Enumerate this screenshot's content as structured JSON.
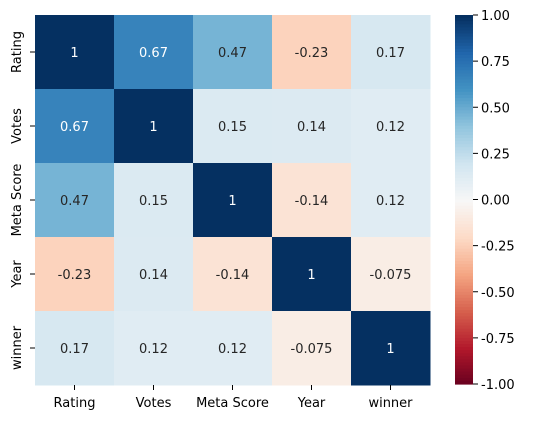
{
  "chart_data": {
    "type": "heatmap",
    "title": "",
    "xlabel": "",
    "ylabel": "",
    "x_categories": [
      "Rating",
      "Votes",
      "Meta Score",
      "Year",
      "winner"
    ],
    "y_categories": [
      "Rating",
      "Votes",
      "Meta Score",
      "Year",
      "winner"
    ],
    "values": [
      [
        1,
        0.67,
        0.47,
        -0.23,
        0.17
      ],
      [
        0.67,
        1,
        0.15,
        0.14,
        0.12
      ],
      [
        0.47,
        0.15,
        1,
        -0.14,
        0.12
      ],
      [
        -0.23,
        0.14,
        -0.14,
        1,
        -0.075
      ],
      [
        0.17,
        0.12,
        0.12,
        -0.075,
        1
      ]
    ],
    "cell_labels": [
      [
        "1",
        "0.67",
        "0.47",
        "-0.23",
        "0.17"
      ],
      [
        "0.67",
        "1",
        "0.15",
        "0.14",
        "0.12"
      ],
      [
        "0.47",
        "0.15",
        "1",
        "-0.14",
        "0.12"
      ],
      [
        "-0.23",
        "0.14",
        "-0.14",
        "1",
        "-0.075"
      ],
      [
        "0.17",
        "0.12",
        "0.12",
        "-0.075",
        "1"
      ]
    ],
    "colormap": "RdBu",
    "vmin": -1,
    "vmax": 1,
    "colorbar_ticks": [
      "1.00",
      "0.75",
      "0.50",
      "0.25",
      "0.00",
      "-0.25",
      "-0.50",
      "-0.75",
      "-1.00"
    ],
    "colorbar_tick_values": [
      1,
      0.75,
      0.5,
      0.25,
      0,
      -0.25,
      -0.5,
      -0.75,
      -1
    ],
    "colorbar_placement": "right",
    "grid": false
  }
}
